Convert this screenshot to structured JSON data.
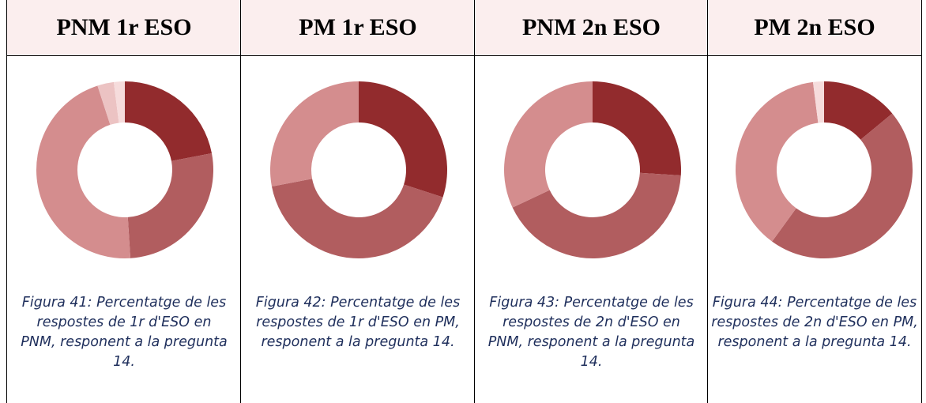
{
  "chart_data": [
    {
      "type": "pie",
      "title": "PNM 1r ESO",
      "values": [
        22,
        27,
        46,
        3,
        2
      ],
      "colors": [
        "#922b2d",
        "#b15d5f",
        "#d48d8e",
        "#ecc3c3",
        "#f6dcdc"
      ],
      "caption": "Figura 41: Percentatge de les respostes de 1r d'ESO en PNM, responent a la pregunta 14."
    },
    {
      "type": "pie",
      "title": "PM 1r ESO",
      "values": [
        30,
        42,
        28
      ],
      "colors": [
        "#922b2d",
        "#b15d5f",
        "#d48d8e"
      ],
      "caption": "Figura 42: Percentatge de les respostes de 1r d'ESO en PM, responent a la pregunta 14."
    },
    {
      "type": "pie",
      "title": "PNM 2n ESO",
      "values": [
        26,
        42,
        32
      ],
      "colors": [
        "#922b2d",
        "#b15d5f",
        "#d48d8e"
      ],
      "caption": "Figura 43: Percentatge de les respostes de 2n d'ESO en PNM, responent a la pregunta 14."
    },
    {
      "type": "pie",
      "title": "PM 2n ESO",
      "values": [
        14,
        46,
        38,
        2
      ],
      "colors": [
        "#922b2d",
        "#b15d5f",
        "#d48d8e",
        "#f6dcdc"
      ],
      "caption": "Figura 44: Percentatge de les respostes de 2n d'ESO en PM, responent a la pregunta 14."
    }
  ]
}
